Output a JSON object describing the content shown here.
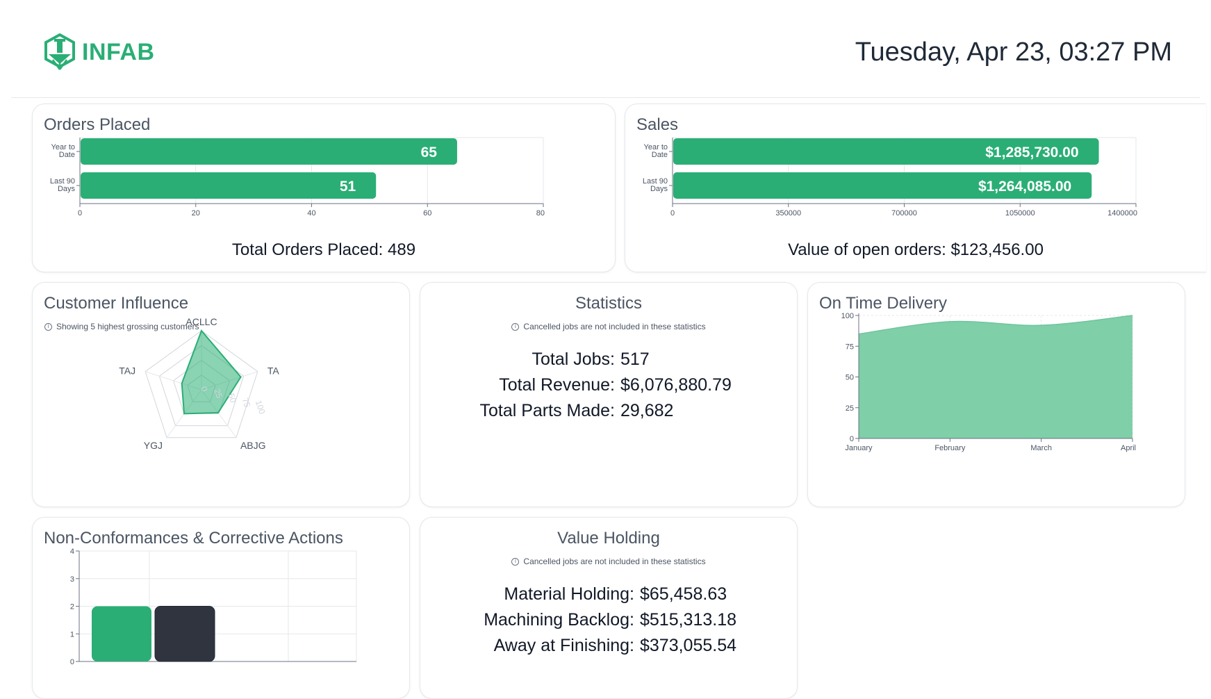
{
  "header": {
    "logo_text": "INFAB",
    "datetime": "Tuesday, Apr 23, 03:27 PM"
  },
  "colors": {
    "accent": "#2aae75",
    "dark": "#30343f",
    "area": "#7fcfa9"
  },
  "orders": {
    "title": "Orders Placed",
    "total_label": "Total Orders Placed: 489",
    "chart_data": {
      "type": "bar",
      "orientation": "horizontal",
      "categories": [
        [
          "Year to",
          "Date"
        ],
        [
          "Last 90",
          "Days"
        ]
      ],
      "values": [
        65,
        51
      ],
      "value_labels": [
        "65",
        "51"
      ],
      "xlim": [
        0,
        80
      ],
      "ticks": [
        0,
        20,
        40,
        60,
        80
      ],
      "grid": true
    }
  },
  "sales": {
    "title": "Sales",
    "total_label": "Value of open orders: $123,456.00",
    "chart_data": {
      "type": "bar",
      "orientation": "horizontal",
      "categories": [
        [
          "Year to",
          "Date"
        ],
        [
          "Last 90",
          "Days"
        ]
      ],
      "values": [
        1285730,
        1264085
      ],
      "value_labels": [
        "$1,285,730.00",
        "$1,264,085.00"
      ],
      "xlim": [
        0,
        1400000
      ],
      "ticks": [
        0,
        350000,
        700000,
        1050000,
        1400000
      ],
      "grid": true
    }
  },
  "customer": {
    "title": "Customer Influence",
    "note": "Showing 5 highest grossing customers",
    "chart_data": {
      "type": "radar",
      "axes": [
        "ACLLC",
        "TA",
        "ABJG",
        "YGJ",
        "TAJ"
      ],
      "values": [
        100,
        70,
        48,
        50,
        35
      ],
      "rmax": 100,
      "ticks": [
        "0",
        "25",
        "50",
        "75",
        "100"
      ]
    }
  },
  "statistics": {
    "title": "Statistics",
    "note": "Cancelled jobs are not included in these statistics",
    "rows": [
      {
        "label": "Total Jobs:",
        "value": "517"
      },
      {
        "label": "Total Revenue:",
        "value": "$6,076,880.79"
      },
      {
        "label": "Total Parts Made:",
        "value": "29,682"
      }
    ]
  },
  "delivery": {
    "title": "On Time Delivery",
    "chart_data": {
      "type": "area",
      "x": [
        "January",
        "February",
        "March",
        "April"
      ],
      "values": [
        85,
        95,
        92,
        100
      ],
      "ylim": [
        0,
        100
      ],
      "yticks": [
        0,
        25,
        50,
        75,
        100
      ],
      "grid": true
    }
  },
  "ncr": {
    "title": "Non-Conformances & Corrective Actions",
    "chart_data": {
      "type": "bar",
      "series_values": [
        2,
        2
      ],
      "ylim": [
        0,
        4
      ],
      "yticks": [
        0,
        1,
        2,
        3,
        4
      ],
      "grid": true
    }
  },
  "value_holding": {
    "title": "Value Holding",
    "note": "Cancelled jobs are not included in these statistics",
    "rows": [
      {
        "label": "Material Holding:",
        "value": "$65,458.63"
      },
      {
        "label": "Machining Backlog:",
        "value": "$515,313.18"
      },
      {
        "label": "Away at Finishing:",
        "value": "$373,055.54"
      }
    ]
  }
}
